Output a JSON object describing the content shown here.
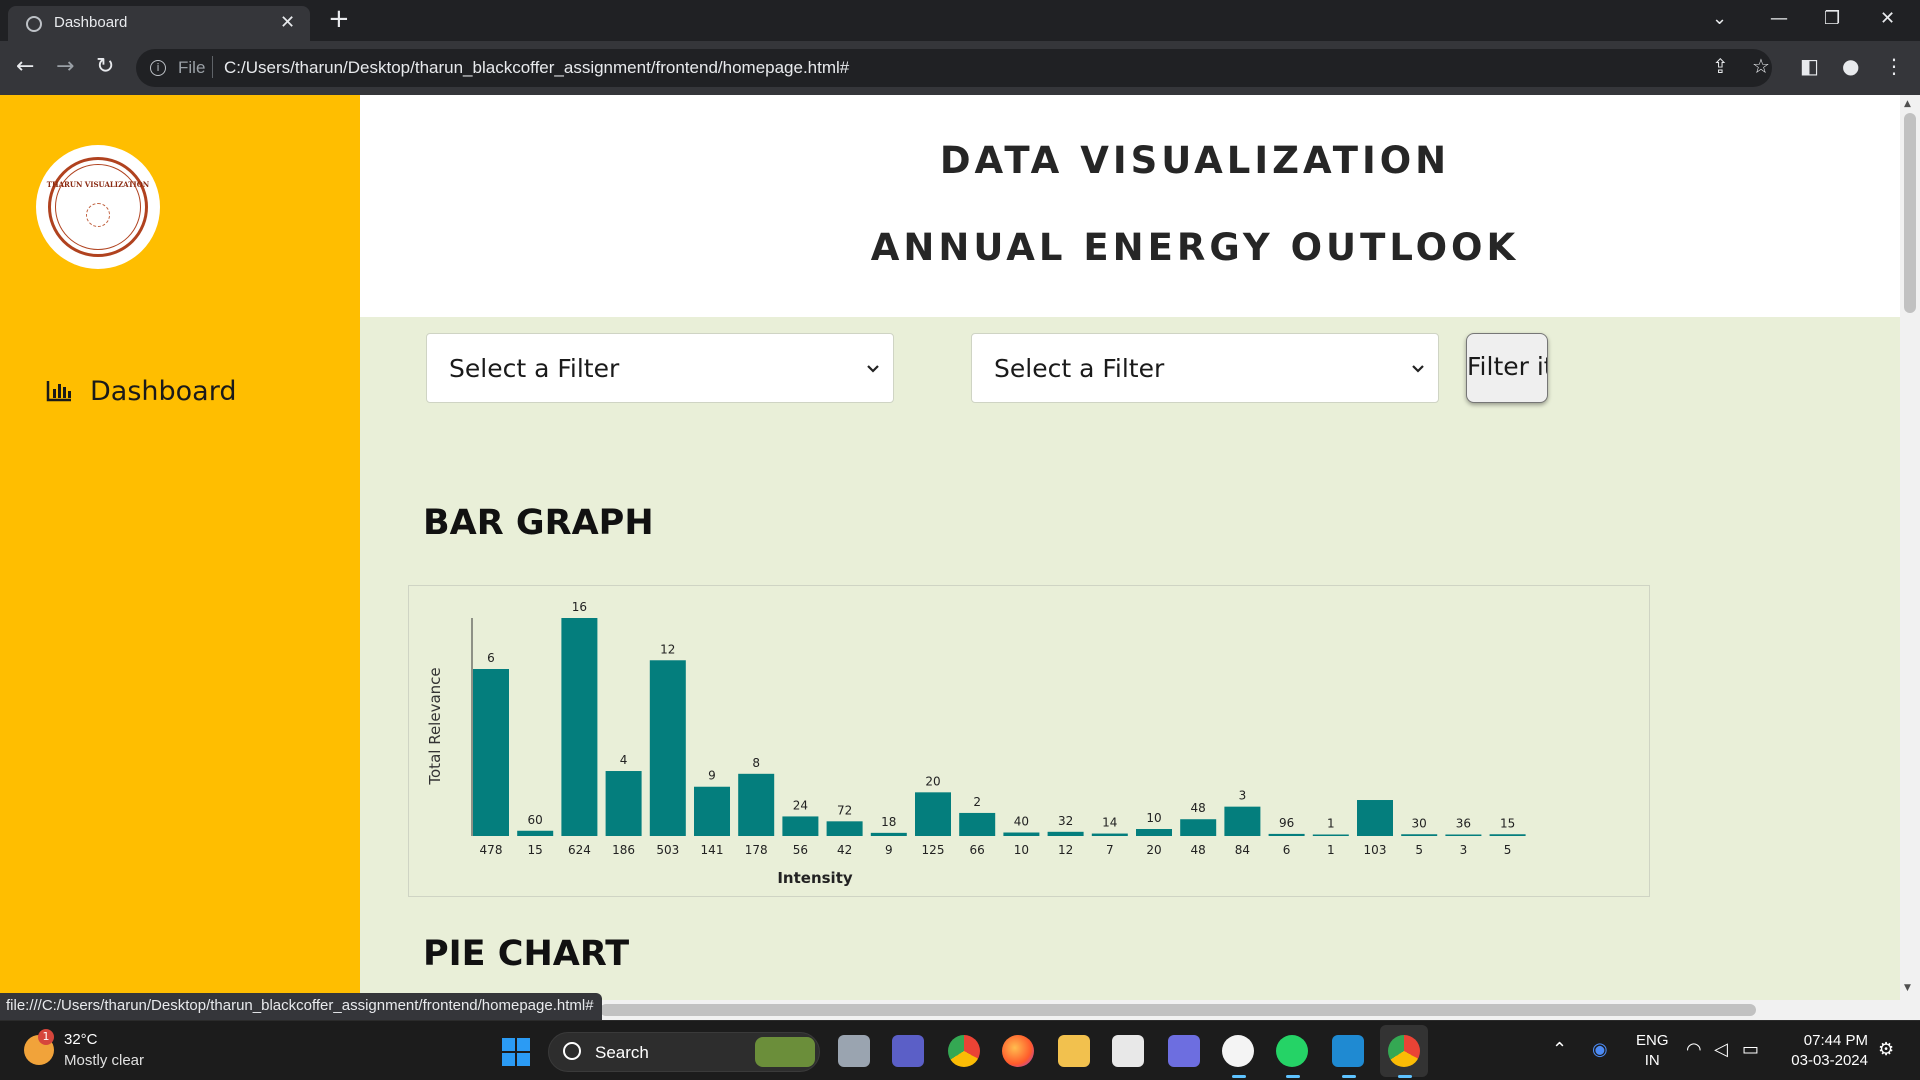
{
  "browser": {
    "tab_title": "Dashboard",
    "file_label": "File",
    "url": "C:/Users/tharun/Desktop/tharun_blackcoffer_assignment/frontend/homepage.html#",
    "status_url": "file:///C:/Users/tharun/Desktop/tharun_blackcoffer_assignment/frontend/homepage.html#"
  },
  "sidebar": {
    "logo_text": "THARUN VISUALIZATION",
    "items": [
      {
        "label": "Dashboard",
        "icon": "bar-chart-icon"
      }
    ]
  },
  "header": {
    "title": "DATA VISUALIZATION",
    "subtitle": "ANNUAL ENERGY OUTLOOK"
  },
  "filters": {
    "select1": "Select a Filter",
    "select2": "Select a Filter",
    "button": "Filter it"
  },
  "sections": {
    "bar_title": "BAR GRAPH",
    "pie_title": "PIE CHART"
  },
  "chart_data": {
    "type": "bar",
    "xlabel": "Intensity",
    "ylabel": "Total Relevance",
    "categories": [
      "478",
      "15",
      "624",
      "186",
      "503",
      "141",
      "178",
      "56",
      "42",
      "9",
      "125",
      "66",
      "10",
      "12",
      "7",
      "20",
      "48",
      "84",
      "6",
      "1",
      "103",
      "5",
      "3",
      "5"
    ],
    "bar_labels": [
      "6",
      "60",
      "16",
      "4",
      "12",
      "9",
      "8",
      "24",
      "72",
      "18",
      "20",
      "2",
      "40",
      "32",
      "14",
      "10",
      "48",
      "3",
      "96",
      "1",
      "",
      "30",
      "36",
      "15"
    ],
    "values": [
      478,
      15,
      624,
      186,
      503,
      141,
      178,
      56,
      42,
      9,
      125,
      66,
      10,
      12,
      7,
      20,
      48,
      84,
      6,
      1,
      103,
      5,
      3,
      5
    ],
    "ylim": [
      0,
      624
    ],
    "color": "#047e7d",
    "legend": "none",
    "grid": false
  },
  "taskbar": {
    "temp": "32°C",
    "weather": "Mostly clear",
    "weather_badge": "1",
    "search": "Search",
    "lang1": "ENG",
    "lang2": "IN",
    "time": "07:44 PM",
    "date": "03-03-2024"
  },
  "colors": {
    "sidebar": "#ffbe00",
    "content_bg": "#e9efd8",
    "bar": "#047e7d"
  }
}
